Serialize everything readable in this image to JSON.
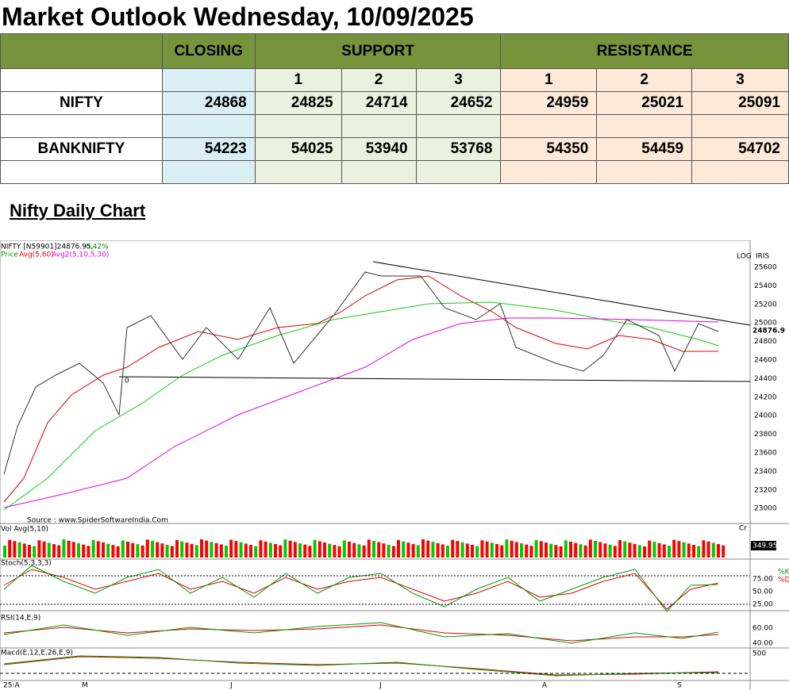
{
  "title": "Market Outlook Wednesday, 10/09/2025",
  "table": {
    "header": [
      "CLOSING",
      "SUPPORT",
      "RESISTANCE"
    ],
    "subheader": [
      "1",
      "2",
      "3",
      "1",
      "2",
      "3"
    ],
    "rows": [
      [
        "NIFTY",
        "24868",
        "24825",
        "24714",
        "24652",
        "24959",
        "25021",
        "25091"
      ],
      [
        "BANKNIFTY",
        "54223",
        "54025",
        "53940",
        "53768",
        "54350",
        "54459",
        "54702"
      ]
    ]
  },
  "chart": {
    "heading": "Nifty Daily Chart",
    "info": "NIFTY [N59901]24876.95,",
    "change": "0.42%",
    "legend": [
      "Price",
      "Avg(5,60)",
      "Avg2(5,10,5,30)"
    ],
    "log": "LOG",
    "iris": "IRIS",
    "price_tag": "24876.9",
    "marker": "0",
    "source": "Source : www.SpiderSoftwareIndia.Com",
    "yticks": [
      "25600",
      "25400",
      "25200",
      "25000",
      "24800",
      "24600",
      "24400",
      "24200",
      "24000",
      "23800",
      "23600",
      "23400",
      "23200",
      "23000"
    ],
    "xlabels": [
      "25:A",
      "M",
      "J",
      "J",
      "A",
      "S"
    ],
    "volume": {
      "label": "Vol Avg(5,10)",
      "tag": "349.95",
      "cr": "Cr"
    },
    "stoch": {
      "label": "Stoch(5,3,3,3)",
      "ticks": [
        "75.00",
        "50.00",
        "25.00"
      ],
      "legend": [
        "%K",
        "%D"
      ]
    },
    "rsi": {
      "label": "RSI(14,E,9)",
      "ticks": [
        "60.00",
        "40.00"
      ]
    },
    "macd": {
      "label": "Macd(E,12,E,26,E,9)",
      "tick": "500"
    }
  }
}
